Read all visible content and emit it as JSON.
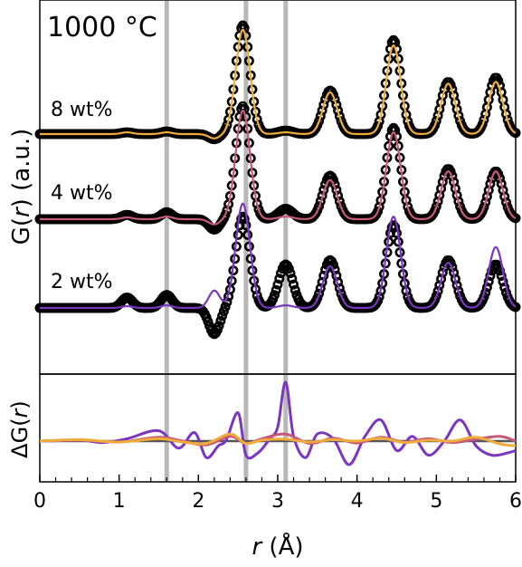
{
  "chart_data": [
    {
      "type": "line",
      "panel": "top",
      "annotation": "1000 °C",
      "ylabel_base": "G(",
      "ylabel_var": "r",
      "ylabel_rest": ") (a.u.)",
      "xlim": [
        0,
        6
      ],
      "reference_lines_x": [
        1.6,
        2.6,
        3.1
      ],
      "peaks_r": [
        1.1,
        1.6,
        2.2,
        2.56,
        3.1,
        3.66,
        4.46,
        5.15,
        5.75
      ],
      "series": [
        {
          "label": "8 wt%",
          "color": "#f0ac3a",
          "offset": 2.0,
          "obs_amp": [
            0.02,
            0.03,
            -0.06,
            1.25,
            0.04,
            0.5,
            1.08,
            0.6,
            0.65
          ],
          "fit_amp": [
            0.02,
            0.02,
            -0.05,
            1.2,
            0.02,
            0.48,
            1.02,
            0.58,
            0.6
          ]
        },
        {
          "label": "4 wt%",
          "color": "#c85878",
          "offset": 1.0,
          "obs_amp": [
            0.05,
            0.08,
            -0.12,
            1.3,
            0.12,
            0.5,
            1.05,
            0.58,
            0.55
          ],
          "fit_amp": [
            0.02,
            0.03,
            -0.06,
            1.25,
            0.03,
            0.45,
            1.0,
            0.55,
            0.55
          ]
        },
        {
          "label": "2 wt%",
          "color": "#7a36c0",
          "offset": 0.0,
          "obs_amp": [
            0.12,
            0.15,
            -0.3,
            1.05,
            0.5,
            0.55,
            0.95,
            0.55,
            0.5
          ],
          "fit_amp": [
            0.02,
            0.03,
            0.2,
            1.2,
            0.03,
            0.48,
            1.05,
            0.52,
            0.7
          ]
        }
      ]
    },
    {
      "type": "line",
      "panel": "bottom",
      "ylabel_base": "ΔG(",
      "ylabel_var": "r",
      "ylabel_rest": ")",
      "xlabel_var": "r",
      "xlabel_rest": " (Å)",
      "xlim": [
        0,
        6
      ],
      "xticks": [
        0,
        1,
        2,
        3,
        4,
        5,
        6
      ],
      "zero_line": 0,
      "series": [
        {
          "name": "2 wt%",
          "color": "#7a36c0",
          "x": [
            0,
            0.5,
            0.8,
            1.1,
            1.5,
            1.75,
            1.95,
            2.1,
            2.25,
            2.35,
            2.5,
            2.6,
            2.75,
            2.9,
            3.0,
            3.1,
            3.2,
            3.35,
            3.5,
            3.7,
            3.9,
            4.1,
            4.3,
            4.5,
            4.7,
            4.9,
            5.1,
            5.3,
            5.5,
            5.7,
            5.9,
            6.0
          ],
          "y": [
            0.0,
            0.02,
            -0.03,
            0.05,
            0.22,
            -0.15,
            0.18,
            -0.35,
            -0.1,
            0.02,
            0.6,
            -0.3,
            -0.25,
            0.05,
            0.3,
            1.25,
            0.1,
            -0.35,
            0.15,
            0.05,
            -0.5,
            0.1,
            0.45,
            -0.2,
            0.1,
            -0.3,
            0.0,
            0.45,
            -0.1,
            -0.3,
            -0.25,
            -0.2
          ]
        },
        {
          "name": "4 wt%",
          "color": "#c85878",
          "x": [
            0,
            0.5,
            1.0,
            1.5,
            1.8,
            2.1,
            2.4,
            2.6,
            2.8,
            3.1,
            3.4,
            3.7,
            4.0,
            4.3,
            4.6,
            4.9,
            5.2,
            5.5,
            5.8,
            6.0
          ],
          "y": [
            0.0,
            0.02,
            -0.02,
            0.08,
            0.0,
            -0.08,
            0.1,
            -0.05,
            0.05,
            0.15,
            -0.05,
            0.06,
            -0.04,
            0.08,
            -0.02,
            0.05,
            -0.03,
            0.04,
            0.1,
            0.0
          ]
        },
        {
          "name": "8 wt%",
          "color": "#f0ac3a",
          "x": [
            0,
            0.5,
            1.0,
            1.5,
            1.8,
            2.1,
            2.4,
            2.6,
            2.8,
            3.1,
            3.4,
            3.7,
            4.0,
            4.3,
            4.6,
            4.9,
            5.2,
            5.5,
            5.8,
            6.0
          ],
          "y": [
            0.0,
            0.03,
            -0.02,
            0.05,
            -0.02,
            -0.05,
            0.15,
            -0.05,
            0.02,
            0.04,
            -0.02,
            0.03,
            0.0,
            0.06,
            -0.03,
            0.02,
            0.0,
            0.08,
            -0.06,
            -0.1
          ]
        }
      ]
    }
  ]
}
